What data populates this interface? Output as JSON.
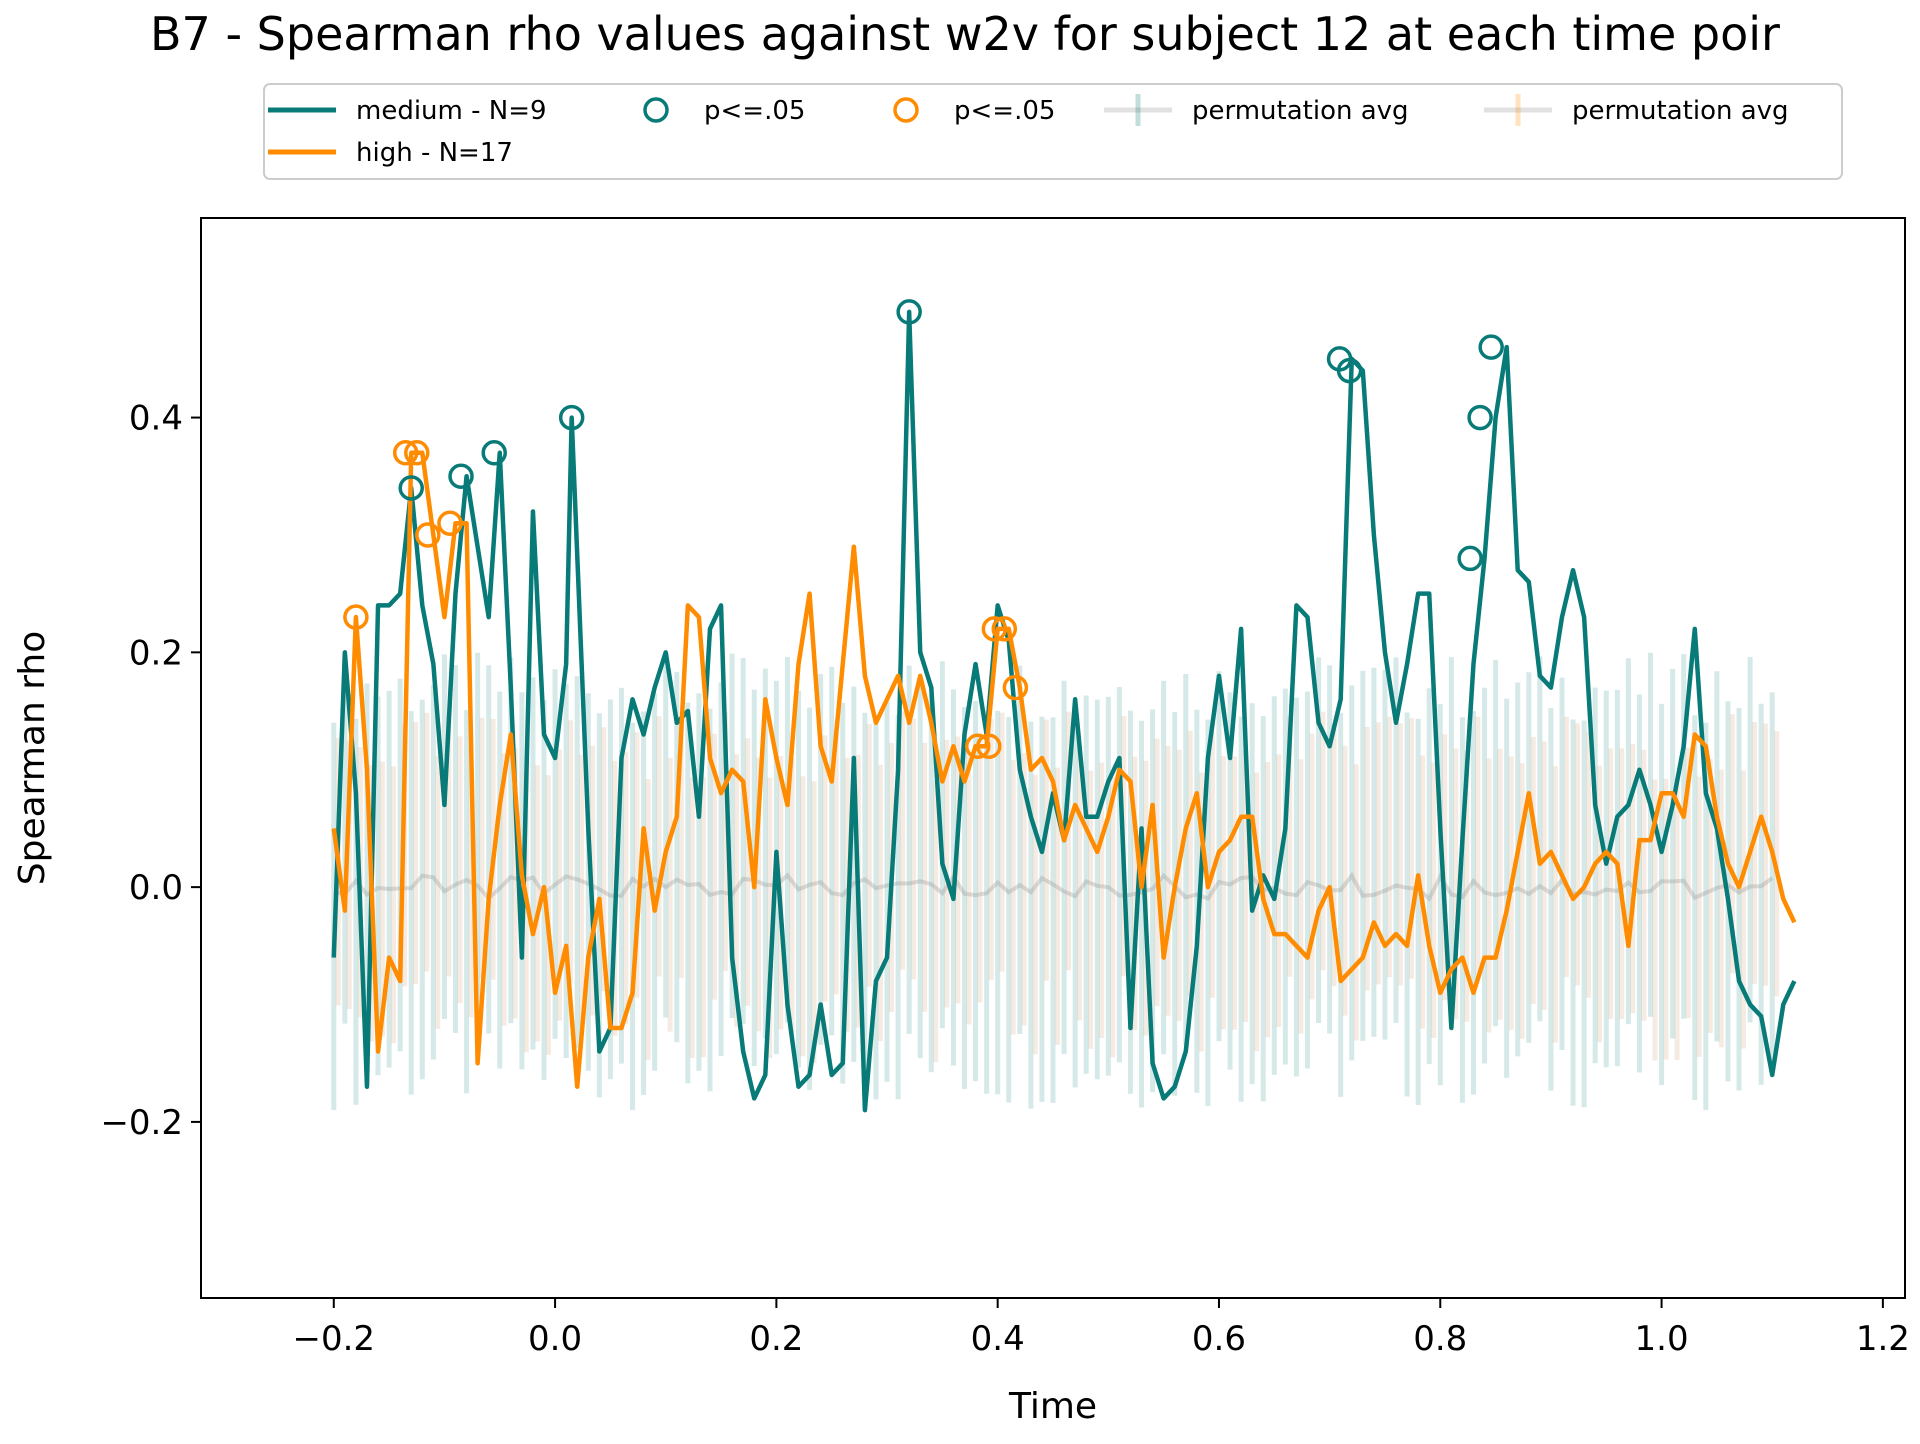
{
  "chart_data": {
    "type": "line",
    "title": "B7 - Spearman rho values against w2v for subject 12 at each time poir",
    "xlabel": "Time",
    "ylabel": "Spearman rho",
    "xlim": [
      -0.32,
      1.22
    ],
    "ylim": [
      -0.35,
      0.57
    ],
    "grid": false,
    "legend_position": "top-center",
    "x_ticks": [
      -0.2,
      0.0,
      0.2,
      0.4,
      0.6,
      0.8,
      1.0,
      1.2
    ],
    "x_tick_labels": [
      "−0.2",
      "0.0",
      "0.2",
      "0.4",
      "0.6",
      "0.8",
      "1.0",
      "1.2"
    ],
    "y_ticks": [
      -0.2,
      0.0,
      0.2,
      0.4
    ],
    "y_tick_labels": [
      "−0.2",
      "0.0",
      "0.2",
      "0.4"
    ],
    "legend": [
      {
        "label": "medium - N=9",
        "kind": "line",
        "color": "#087b78"
      },
      {
        "label": "high - N=17",
        "kind": "line",
        "color": "#ff8c00"
      },
      {
        "label": "p<=.05",
        "kind": "circle",
        "color": "#087b78"
      },
      {
        "label": "p<=.05",
        "kind": "circle",
        "color": "#ff8c00"
      },
      {
        "label": "permutation avg",
        "kind": "errorbar",
        "color": "#087b78"
      },
      {
        "label": "permutation avg",
        "kind": "errorbar",
        "color": "#ff8c00"
      }
    ],
    "series": [
      {
        "name": "medium - N=9",
        "color": "#087b78",
        "points": [
          [
            -0.2,
            -0.06
          ],
          [
            -0.19,
            0.2
          ],
          [
            -0.18,
            0.08
          ],
          [
            -0.17,
            -0.17
          ],
          [
            -0.16,
            0.24
          ],
          [
            -0.15,
            0.24
          ],
          [
            -0.14,
            0.25
          ],
          [
            -0.13,
            0.34
          ],
          [
            -0.12,
            0.24
          ],
          [
            -0.11,
            0.19
          ],
          [
            -0.1,
            0.07
          ],
          [
            -0.09,
            0.25
          ],
          [
            -0.08,
            0.35
          ],
          [
            -0.07,
            0.29
          ],
          [
            -0.06,
            0.23
          ],
          [
            -0.05,
            0.37
          ],
          [
            -0.04,
            0.17
          ],
          [
            -0.03,
            -0.06
          ],
          [
            -0.02,
            0.32
          ],
          [
            -0.01,
            0.13
          ],
          [
            0.0,
            0.11
          ],
          [
            0.01,
            0.19
          ],
          [
            0.015,
            0.4
          ],
          [
            0.03,
            0.05
          ],
          [
            0.04,
            -0.14
          ],
          [
            0.05,
            -0.12
          ],
          [
            0.06,
            0.11
          ],
          [
            0.07,
            0.16
          ],
          [
            0.08,
            0.13
          ],
          [
            0.09,
            0.17
          ],
          [
            0.1,
            0.2
          ],
          [
            0.11,
            0.14
          ],
          [
            0.12,
            0.15
          ],
          [
            0.13,
            0.06
          ],
          [
            0.14,
            0.22
          ],
          [
            0.15,
            0.24
          ],
          [
            0.16,
            -0.06
          ],
          [
            0.17,
            -0.14
          ],
          [
            0.18,
            -0.18
          ],
          [
            0.19,
            -0.16
          ],
          [
            0.2,
            0.03
          ],
          [
            0.21,
            -0.1
          ],
          [
            0.22,
            -0.17
          ],
          [
            0.23,
            -0.16
          ],
          [
            0.24,
            -0.1
          ],
          [
            0.25,
            -0.16
          ],
          [
            0.26,
            -0.15
          ],
          [
            0.27,
            0.11
          ],
          [
            0.28,
            -0.19
          ],
          [
            0.29,
            -0.08
          ],
          [
            0.3,
            -0.06
          ],
          [
            0.31,
            0.1
          ],
          [
            0.32,
            0.49
          ],
          [
            0.33,
            0.2
          ],
          [
            0.34,
            0.17
          ],
          [
            0.35,
            0.02
          ],
          [
            0.36,
            -0.01
          ],
          [
            0.37,
            0.13
          ],
          [
            0.38,
            0.19
          ],
          [
            0.39,
            0.13
          ],
          [
            0.4,
            0.24
          ],
          [
            0.41,
            0.21
          ],
          [
            0.42,
            0.1
          ],
          [
            0.43,
            0.06
          ],
          [
            0.44,
            0.03
          ],
          [
            0.45,
            0.08
          ],
          [
            0.46,
            0.04
          ],
          [
            0.47,
            0.16
          ],
          [
            0.48,
            0.06
          ],
          [
            0.49,
            0.06
          ],
          [
            0.5,
            0.09
          ],
          [
            0.51,
            0.11
          ],
          [
            0.52,
            -0.12
          ],
          [
            0.53,
            0.05
          ],
          [
            0.54,
            -0.15
          ],
          [
            0.55,
            -0.18
          ],
          [
            0.56,
            -0.17
          ],
          [
            0.57,
            -0.14
          ],
          [
            0.58,
            -0.05
          ],
          [
            0.59,
            0.11
          ],
          [
            0.6,
            0.18
          ],
          [
            0.61,
            0.11
          ],
          [
            0.62,
            0.22
          ],
          [
            0.63,
            -0.02
          ],
          [
            0.64,
            0.01
          ],
          [
            0.65,
            -0.01
          ],
          [
            0.66,
            0.05
          ],
          [
            0.67,
            0.24
          ],
          [
            0.68,
            0.23
          ],
          [
            0.69,
            0.14
          ],
          [
            0.7,
            0.12
          ],
          [
            0.71,
            0.16
          ],
          [
            0.72,
            0.45
          ],
          [
            0.73,
            0.44
          ],
          [
            0.74,
            0.3
          ],
          [
            0.75,
            0.2
          ],
          [
            0.76,
            0.14
          ],
          [
            0.77,
            0.19
          ],
          [
            0.78,
            0.25
          ],
          [
            0.79,
            0.25
          ],
          [
            0.8,
            0.05
          ],
          [
            0.81,
            -0.12
          ],
          [
            0.82,
            0.04
          ],
          [
            0.83,
            0.19
          ],
          [
            0.84,
            0.28
          ],
          [
            0.85,
            0.4
          ],
          [
            0.86,
            0.46
          ],
          [
            0.87,
            0.27
          ],
          [
            0.88,
            0.26
          ],
          [
            0.89,
            0.18
          ],
          [
            0.9,
            0.17
          ],
          [
            0.91,
            0.23
          ],
          [
            0.92,
            0.27
          ],
          [
            0.93,
            0.23
          ],
          [
            0.94,
            0.07
          ],
          [
            0.95,
            0.02
          ],
          [
            0.96,
            0.06
          ],
          [
            0.97,
            0.07
          ],
          [
            0.98,
            0.1
          ],
          [
            0.99,
            0.07
          ],
          [
            1.0,
            0.03
          ],
          [
            1.01,
            0.07
          ],
          [
            1.02,
            0.12
          ],
          [
            1.03,
            0.22
          ],
          [
            1.04,
            0.08
          ],
          [
            1.05,
            0.05
          ],
          [
            1.06,
            -0.01
          ],
          [
            1.07,
            -0.08
          ],
          [
            1.08,
            -0.1
          ],
          [
            1.09,
            -0.11
          ],
          [
            1.1,
            -0.16
          ],
          [
            1.11,
            -0.1
          ],
          [
            1.12,
            -0.08
          ]
        ],
        "significant": [
          [
            -0.13,
            0.34
          ],
          [
            -0.085,
            0.35
          ],
          [
            -0.055,
            0.37
          ],
          [
            0.015,
            0.4
          ],
          [
            0.32,
            0.49
          ],
          [
            0.709,
            0.45
          ],
          [
            0.718,
            0.44
          ],
          [
            0.827,
            0.28
          ],
          [
            0.836,
            0.4
          ],
          [
            0.846,
            0.46
          ]
        ]
      },
      {
        "name": "high - N=17",
        "color": "#ff8c00",
        "points": [
          [
            -0.2,
            0.05
          ],
          [
            -0.19,
            -0.02
          ],
          [
            -0.18,
            0.23
          ],
          [
            -0.17,
            0.1
          ],
          [
            -0.16,
            -0.14
          ],
          [
            -0.15,
            -0.06
          ],
          [
            -0.14,
            -0.08
          ],
          [
            -0.13,
            0.37
          ],
          [
            -0.12,
            0.37
          ],
          [
            -0.11,
            0.3
          ],
          [
            -0.1,
            0.23
          ],
          [
            -0.09,
            0.31
          ],
          [
            -0.08,
            0.31
          ],
          [
            -0.07,
            -0.15
          ],
          [
            -0.06,
            -0.01
          ],
          [
            -0.05,
            0.07
          ],
          [
            -0.04,
            0.13
          ],
          [
            -0.03,
            0.01
          ],
          [
            -0.02,
            -0.04
          ],
          [
            -0.01,
            0.0
          ],
          [
            0.0,
            -0.09
          ],
          [
            0.01,
            -0.05
          ],
          [
            0.02,
            -0.17
          ],
          [
            0.03,
            -0.06
          ],
          [
            0.04,
            -0.01
          ],
          [
            0.05,
            -0.12
          ],
          [
            0.06,
            -0.12
          ],
          [
            0.07,
            -0.09
          ],
          [
            0.08,
            0.05
          ],
          [
            0.09,
            -0.02
          ],
          [
            0.1,
            0.03
          ],
          [
            0.11,
            0.06
          ],
          [
            0.12,
            0.24
          ],
          [
            0.13,
            0.23
          ],
          [
            0.14,
            0.11
          ],
          [
            0.15,
            0.08
          ],
          [
            0.16,
            0.1
          ],
          [
            0.17,
            0.09
          ],
          [
            0.18,
            0.0
          ],
          [
            0.19,
            0.16
          ],
          [
            0.2,
            0.11
          ],
          [
            0.21,
            0.07
          ],
          [
            0.22,
            0.19
          ],
          [
            0.23,
            0.25
          ],
          [
            0.24,
            0.12
          ],
          [
            0.25,
            0.09
          ],
          [
            0.26,
            0.19
          ],
          [
            0.27,
            0.29
          ],
          [
            0.28,
            0.18
          ],
          [
            0.29,
            0.14
          ],
          [
            0.3,
            0.16
          ],
          [
            0.31,
            0.18
          ],
          [
            0.32,
            0.14
          ],
          [
            0.33,
            0.18
          ],
          [
            0.34,
            0.14
          ],
          [
            0.35,
            0.09
          ],
          [
            0.36,
            0.12
          ],
          [
            0.37,
            0.09
          ],
          [
            0.38,
            0.12
          ],
          [
            0.39,
            0.12
          ],
          [
            0.4,
            0.22
          ],
          [
            0.41,
            0.22
          ],
          [
            0.42,
            0.17
          ],
          [
            0.43,
            0.1
          ],
          [
            0.44,
            0.11
          ],
          [
            0.45,
            0.09
          ],
          [
            0.46,
            0.04
          ],
          [
            0.47,
            0.07
          ],
          [
            0.48,
            0.05
          ],
          [
            0.49,
            0.03
          ],
          [
            0.5,
            0.06
          ],
          [
            0.51,
            0.1
          ],
          [
            0.52,
            0.09
          ],
          [
            0.53,
            0.0
          ],
          [
            0.54,
            0.07
          ],
          [
            0.55,
            -0.06
          ],
          [
            0.56,
            0.0
          ],
          [
            0.57,
            0.05
          ],
          [
            0.58,
            0.08
          ],
          [
            0.59,
            0.0
          ],
          [
            0.6,
            0.03
          ],
          [
            0.61,
            0.04
          ],
          [
            0.62,
            0.06
          ],
          [
            0.63,
            0.06
          ],
          [
            0.64,
            -0.01
          ],
          [
            0.65,
            -0.04
          ],
          [
            0.66,
            -0.04
          ],
          [
            0.67,
            -0.05
          ],
          [
            0.68,
            -0.06
          ],
          [
            0.69,
            -0.02
          ],
          [
            0.7,
            0.0
          ],
          [
            0.71,
            -0.08
          ],
          [
            0.72,
            -0.07
          ],
          [
            0.73,
            -0.06
          ],
          [
            0.74,
            -0.03
          ],
          [
            0.75,
            -0.05
          ],
          [
            0.76,
            -0.04
          ],
          [
            0.77,
            -0.05
          ],
          [
            0.78,
            0.01
          ],
          [
            0.79,
            -0.05
          ],
          [
            0.8,
            -0.09
          ],
          [
            0.81,
            -0.07
          ],
          [
            0.82,
            -0.06
          ],
          [
            0.83,
            -0.09
          ],
          [
            0.84,
            -0.06
          ],
          [
            0.85,
            -0.06
          ],
          [
            0.86,
            -0.02
          ],
          [
            0.87,
            0.03
          ],
          [
            0.88,
            0.08
          ],
          [
            0.89,
            0.02
          ],
          [
            0.9,
            0.03
          ],
          [
            0.91,
            0.01
          ],
          [
            0.92,
            -0.01
          ],
          [
            0.93,
            0.0
          ],
          [
            0.94,
            0.02
          ],
          [
            0.95,
            0.03
          ],
          [
            0.96,
            0.02
          ],
          [
            0.97,
            -0.05
          ],
          [
            0.98,
            0.04
          ],
          [
            0.99,
            0.04
          ],
          [
            1.0,
            0.08
          ],
          [
            1.01,
            0.08
          ],
          [
            1.02,
            0.06
          ],
          [
            1.03,
            0.13
          ],
          [
            1.04,
            0.12
          ],
          [
            1.05,
            0.06
          ],
          [
            1.06,
            0.02
          ],
          [
            1.07,
            0.0
          ],
          [
            1.08,
            0.03
          ],
          [
            1.09,
            0.06
          ],
          [
            1.1,
            0.03
          ],
          [
            1.11,
            -0.01
          ],
          [
            1.12,
            -0.03
          ]
        ],
        "significant": [
          [
            -0.18,
            0.23
          ],
          [
            -0.135,
            0.37
          ],
          [
            -0.125,
            0.37
          ],
          [
            -0.115,
            0.3
          ],
          [
            -0.095,
            0.31
          ],
          [
            0.382,
            0.12
          ],
          [
            0.392,
            0.12
          ],
          [
            0.397,
            0.22
          ],
          [
            0.406,
            0.22
          ],
          [
            0.416,
            0.17
          ]
        ]
      }
    ],
    "permutation": {
      "x_start": -0.2,
      "x_end": 1.1,
      "step": 0.01,
      "medium": {
        "color": "#087b78",
        "avg": 0.0,
        "low_base": -0.15,
        "high_base": 0.17
      },
      "high": {
        "color": "#d2a679",
        "avg": 0.0,
        "low_base": -0.11,
        "high_base": 0.12
      }
    }
  }
}
